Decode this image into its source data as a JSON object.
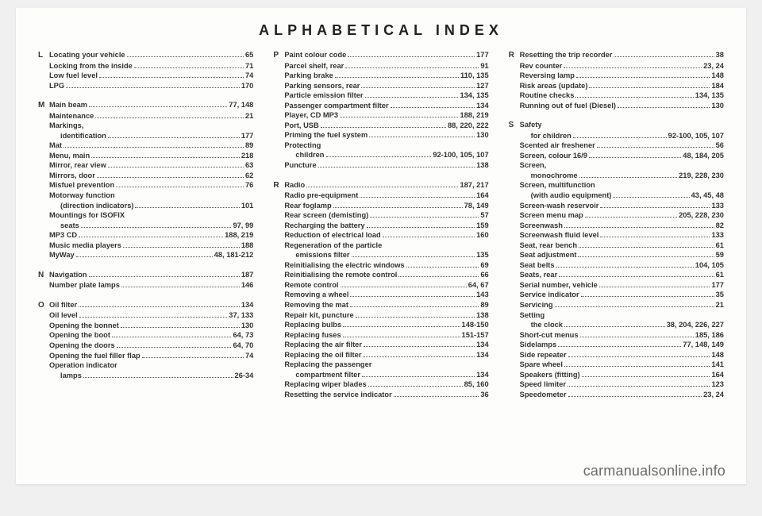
{
  "title": "ALPHABETICAL INDEX",
  "watermark": "carmanualsonline.info",
  "columns": [
    {
      "sections": [
        {
          "letter": "L",
          "entries": [
            {
              "label": "Locating your vehicle",
              "pg": "65"
            },
            {
              "label": "Locking from the inside",
              "pg": "71"
            },
            {
              "label": "Low fuel level",
              "pg": "74"
            },
            {
              "label": "LPG",
              "pg": "170"
            }
          ]
        },
        {
          "letter": "M",
          "entries": [
            {
              "label": "Main beam",
              "pg": "77, 148"
            },
            {
              "label": "Maintenance",
              "pg": "21"
            },
            {
              "label": "Markings,",
              "pg": ""
            },
            {
              "label": "identification",
              "pg": "177",
              "indent": true
            },
            {
              "label": "Mat",
              "pg": "89"
            },
            {
              "label": "Menu, main",
              "pg": "218"
            },
            {
              "label": "Mirror, rear view",
              "pg": "63"
            },
            {
              "label": "Mirrors, door",
              "pg": "62"
            },
            {
              "label": "Misfuel prevention",
              "pg": "76"
            },
            {
              "label": "Motorway function",
              "pg": ""
            },
            {
              "label": "(direction indicators)",
              "pg": "101",
              "indent": true
            },
            {
              "label": "Mountings for ISOFIX",
              "pg": ""
            },
            {
              "label": "seats",
              "pg": "97, 99",
              "indent": true
            },
            {
              "label": "MP3 CD",
              "pg": "188, 219"
            },
            {
              "label": "Music media players",
              "pg": "188"
            },
            {
              "label": "MyWay",
              "pg": "48, 181-212"
            }
          ]
        },
        {
          "letter": "N",
          "entries": [
            {
              "label": "Navigation",
              "pg": "187"
            },
            {
              "label": "Number plate lamps",
              "pg": "146"
            }
          ]
        },
        {
          "letter": "O",
          "entries": [
            {
              "label": "Oil filter",
              "pg": "134"
            },
            {
              "label": "Oil level",
              "pg": "37, 133"
            },
            {
              "label": "Opening the bonnet",
              "pg": "130"
            },
            {
              "label": "Opening the boot",
              "pg": "64, 73"
            },
            {
              "label": "Opening the doors",
              "pg": "64, 70"
            },
            {
              "label": "Opening the fuel filler flap",
              "pg": "74"
            },
            {
              "label": "Operation indicator",
              "pg": ""
            },
            {
              "label": "lamps",
              "pg": "26-34",
              "indent": true
            }
          ]
        }
      ]
    },
    {
      "sections": [
        {
          "letter": "P",
          "entries": [
            {
              "label": "Paint colour code",
              "pg": "177"
            },
            {
              "label": "Parcel shelf, rear",
              "pg": "91"
            },
            {
              "label": "Parking brake",
              "pg": "110, 135"
            },
            {
              "label": "Parking sensors, rear",
              "pg": "127"
            },
            {
              "label": "Particle emission filter",
              "pg": "134, 135"
            },
            {
              "label": "Passenger compartment filter",
              "pg": "134"
            },
            {
              "label": "Player, CD MP3",
              "pg": "188, 219"
            },
            {
              "label": "Port, USB",
              "pg": "88, 220, 222"
            },
            {
              "label": "Priming the fuel system",
              "pg": "130"
            },
            {
              "label": "Protecting",
              "pg": ""
            },
            {
              "label": "children",
              "pg": "92-100, 105, 107",
              "indent": true
            },
            {
              "label": "Puncture",
              "pg": "138"
            }
          ]
        },
        {
          "letter": "R",
          "entries": [
            {
              "label": "Radio",
              "pg": "187, 217"
            },
            {
              "label": "Radio pre-equipment",
              "pg": "164"
            },
            {
              "label": "Rear foglamp",
              "pg": "78, 149"
            },
            {
              "label": "Rear screen (demisting)",
              "pg": "57"
            },
            {
              "label": "Recharging the battery",
              "pg": "159"
            },
            {
              "label": "Reduction of electrical load",
              "pg": "160"
            },
            {
              "label": "Regeneration of the particle",
              "pg": ""
            },
            {
              "label": "emissions filter",
              "pg": "135",
              "indent": true
            },
            {
              "label": "Reinitialising the electric windows",
              "pg": "69"
            },
            {
              "label": "Reinitialising the remote control",
              "pg": "66"
            },
            {
              "label": "Remote control",
              "pg": "64, 67"
            },
            {
              "label": "Removing a wheel",
              "pg": "143"
            },
            {
              "label": "Removing the mat",
              "pg": "89"
            },
            {
              "label": "Repair kit, puncture",
              "pg": "138"
            },
            {
              "label": "Replacing bulbs",
              "pg": "148-150"
            },
            {
              "label": "Replacing fuses",
              "pg": "151-157"
            },
            {
              "label": "Replacing the air filter",
              "pg": "134"
            },
            {
              "label": "Replacing the oil filter",
              "pg": "134"
            },
            {
              "label": "Replacing the passenger",
              "pg": ""
            },
            {
              "label": "compartment filter",
              "pg": "134",
              "indent": true
            },
            {
              "label": "Replacing wiper blades",
              "pg": "85, 160"
            },
            {
              "label": "Resetting the service indicator",
              "pg": "36"
            }
          ]
        }
      ]
    },
    {
      "sections": [
        {
          "letter": "R",
          "entries": [
            {
              "label": "Resetting the trip recorder",
              "pg": "38"
            },
            {
              "label": "Rev counter",
              "pg": "23, 24"
            },
            {
              "label": "Reversing lamp",
              "pg": "148"
            },
            {
              "label": "Risk areas (update)",
              "pg": "184"
            },
            {
              "label": "Routine checks",
              "pg": "134, 135"
            },
            {
              "label": "Running out of fuel (Diesel)",
              "pg": "130"
            }
          ]
        },
        {
          "letter": "S",
          "entries": [
            {
              "label": "Safety",
              "pg": ""
            },
            {
              "label": "for children",
              "pg": "92-100, 105, 107",
              "indent": true
            },
            {
              "label": "Scented air freshener",
              "pg": "56"
            },
            {
              "label": "Screen, colour 16/9",
              "pg": "48, 184, 205"
            },
            {
              "label": "Screen,",
              "pg": ""
            },
            {
              "label": "monochrome",
              "pg": "219, 228, 230",
              "indent": true
            },
            {
              "label": "Screen, multifunction",
              "pg": ""
            },
            {
              "label": "(with audio equipment)",
              "pg": "43, 45, 48",
              "indent": true
            },
            {
              "label": "Screen-wash reservoir",
              "pg": "133"
            },
            {
              "label": "Screen menu map",
              "pg": "205, 228, 230"
            },
            {
              "label": "Screenwash",
              "pg": "82"
            },
            {
              "label": "Screenwash fluid level",
              "pg": "133"
            },
            {
              "label": "Seat, rear bench",
              "pg": "61"
            },
            {
              "label": "Seat adjustment",
              "pg": "59"
            },
            {
              "label": "Seat belts",
              "pg": "104, 105"
            },
            {
              "label": "Seats, rear",
              "pg": "61"
            },
            {
              "label": "Serial number, vehicle",
              "pg": "177"
            },
            {
              "label": "Service indicator",
              "pg": "35"
            },
            {
              "label": "Servicing",
              "pg": "21"
            },
            {
              "label": "Setting",
              "pg": ""
            },
            {
              "label": "the clock",
              "pg": "38, 204, 226, 227",
              "indent": true
            },
            {
              "label": "Short-cut menus",
              "pg": "185, 186"
            },
            {
              "label": "Sidelamps",
              "pg": "77, 148, 149"
            },
            {
              "label": "Side repeater",
              "pg": "148"
            },
            {
              "label": "Spare wheel",
              "pg": "141"
            },
            {
              "label": "Speakers (fitting)",
              "pg": "164"
            },
            {
              "label": "Speed limiter",
              "pg": "123"
            },
            {
              "label": "Speedometer",
              "pg": "23, 24"
            }
          ]
        }
      ]
    }
  ]
}
